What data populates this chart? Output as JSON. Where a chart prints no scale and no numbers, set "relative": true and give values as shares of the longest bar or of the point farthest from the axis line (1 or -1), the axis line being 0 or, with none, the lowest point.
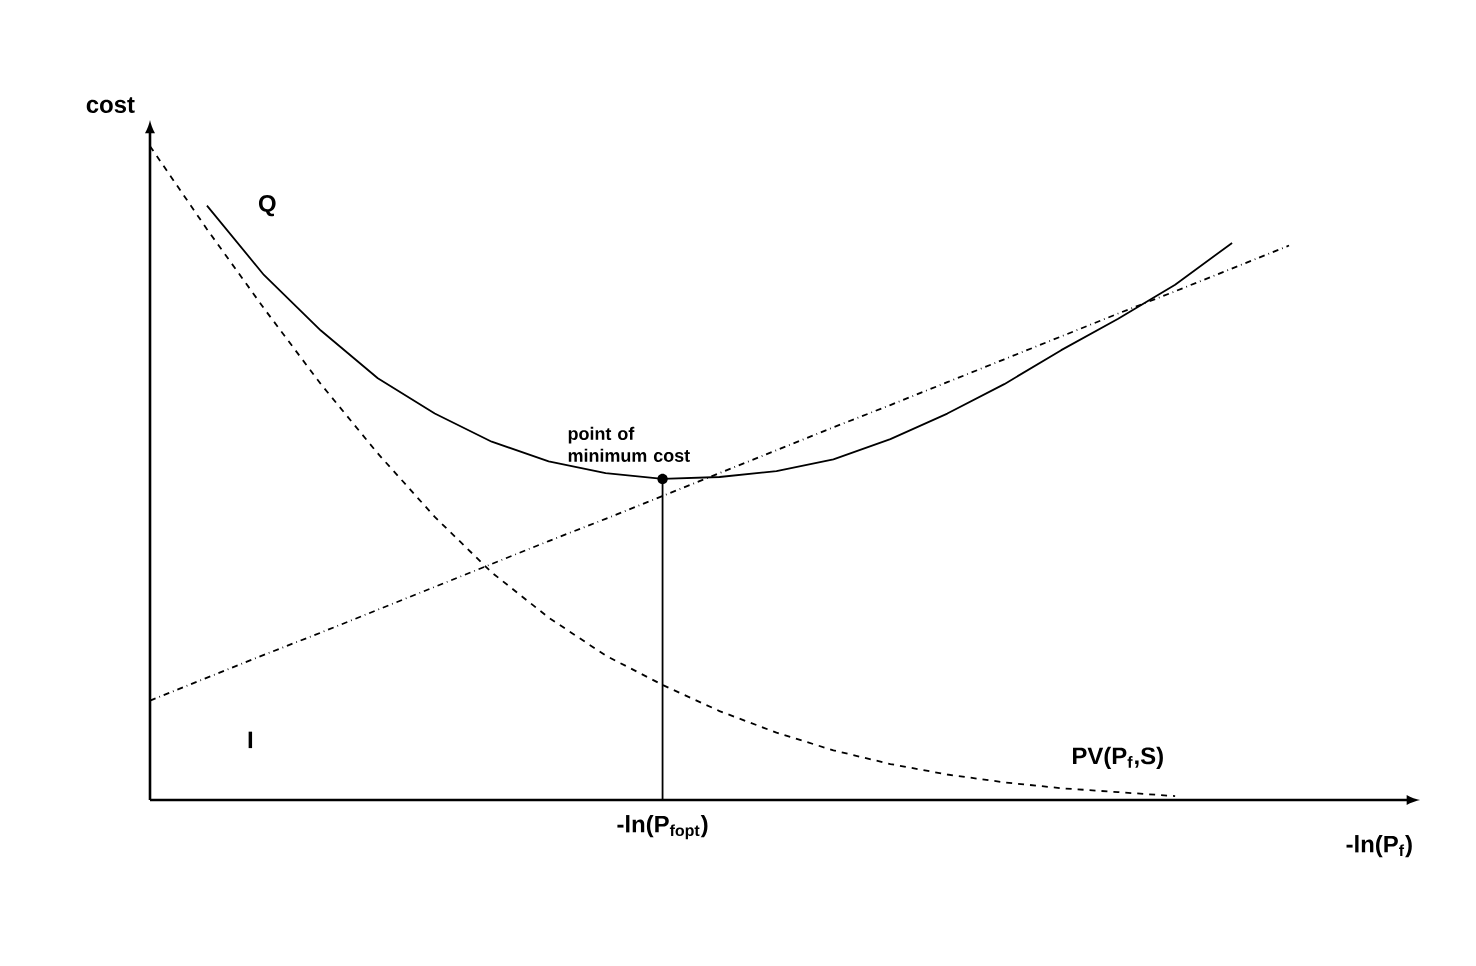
{
  "chart_data": {
    "type": "line",
    "relative": true,
    "xlabel": "-ln(P$_{f}$)",
    "ylabel": "cost",
    "categories": [
      null,
      null,
      null,
      null,
      null,
      null,
      null,
      null,
      null,
      null,
      null,
      null,
      null,
      null,
      null,
      null,
      null,
      null,
      null,
      null,
      null
    ],
    "series": [
      {
        "name": "Q",
        "color": "#000000",
        "line_style": "solid",
        "values": [
          null,
          0.909,
          0.803,
          0.718,
          0.645,
          0.591,
          0.548,
          0.518,
          0.5,
          0.491,
          0.494,
          0.503,
          0.521,
          0.552,
          0.591,
          0.636,
          0.688,
          0.736,
          0.788,
          0.852,
          null
        ]
      },
      {
        "name": "PV(P$_{f}$,S)",
        "color": "#000000",
        "line_style": "dashed",
        "values": [
          1,
          0.873,
          0.752,
          0.636,
          0.53,
          0.433,
          0.348,
          0.279,
          0.221,
          0.176,
          0.136,
          0.103,
          0.076,
          0.055,
          0.039,
          0.027,
          0.018,
          0.012,
          0.006,
          null,
          null
        ]
      },
      {
        "name": "I",
        "color": "#000000",
        "line_style": "dashdot",
        "values": [
          0.152,
          0.187,
          0.222,
          0.256,
          0.291,
          0.326,
          0.361,
          0.396,
          0.43,
          0.465,
          0.5,
          0.535,
          0.57,
          0.604,
          0.639,
          0.674,
          0.709,
          0.744,
          0.778,
          0.813,
          0.848
        ]
      }
    ],
    "annotations": [
      "point of minimum cost",
      "-ln(P$_{fopt}$)"
    ]
  }
}
